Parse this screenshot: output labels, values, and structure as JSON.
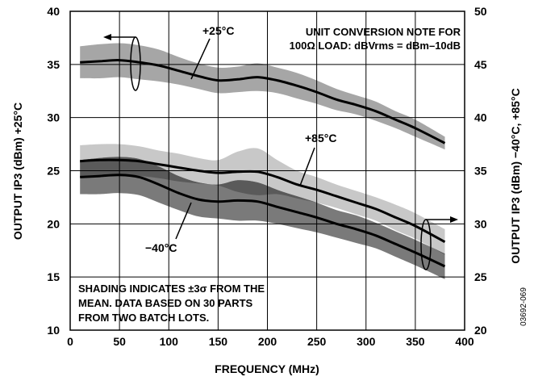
{
  "chart_data": {
    "type": "line",
    "title": "",
    "xlabel": "FREQUENCY (MHz)",
    "ylabel_left": "OUTPUT IP3 (dBm) +25°C",
    "ylabel_right": "OUTPUT IP3 (dBm) −40°C, +85°C",
    "xlim": [
      0,
      400
    ],
    "ylim_left": [
      10,
      40
    ],
    "ylim_right": [
      20,
      50
    ],
    "x_ticks": [
      "0",
      "50",
      "100",
      "150",
      "200",
      "250",
      "300",
      "350",
      "400"
    ],
    "y_ticks_left": [
      "10",
      "15",
      "20",
      "25",
      "30",
      "35",
      "40"
    ],
    "y_ticks_right": [
      "20",
      "25",
      "30",
      "35",
      "40",
      "45",
      "50"
    ],
    "grid": true,
    "colors": {
      "band_25": "#a6a6a6",
      "band_85": "#c8c8c8",
      "band_m40": "#7a7a7a",
      "overlap": "#5a5a5a",
      "line": "#000000",
      "grid": "#000000"
    },
    "series": [
      {
        "name": "+25°C",
        "axis": "left",
        "x": [
          10,
          30,
          50,
          70,
          90,
          110,
          130,
          150,
          170,
          190,
          210,
          230,
          250,
          270,
          290,
          310,
          330,
          350,
          380
        ],
        "y": [
          35.2,
          35.3,
          35.4,
          35.2,
          34.9,
          34.4,
          33.9,
          33.5,
          33.6,
          33.8,
          33.5,
          33.0,
          32.4,
          31.7,
          31.2,
          30.6,
          29.8,
          29.0,
          27.6
        ],
        "band": [
          1.5,
          1.6,
          1.6,
          1.6,
          1.5,
          1.3,
          1.2,
          1.2,
          1.2,
          1.3,
          1.2,
          1.2,
          1.1,
          1.0,
          0.9,
          0.9,
          0.8,
          0.8,
          0.6
        ]
      },
      {
        "name": "+85°C",
        "axis": "right",
        "x": [
          10,
          30,
          50,
          70,
          90,
          110,
          130,
          150,
          170,
          190,
          210,
          230,
          250,
          270,
          290,
          310,
          330,
          350,
          380
        ],
        "y": [
          35.9,
          36.0,
          36.0,
          35.9,
          35.6,
          35.3,
          35.0,
          34.8,
          34.9,
          34.9,
          34.4,
          33.7,
          33.2,
          32.6,
          32.0,
          31.4,
          30.6,
          29.8,
          28.3
        ],
        "band": [
          1.5,
          1.5,
          1.5,
          1.4,
          1.3,
          1.3,
          1.2,
          1.2,
          1.9,
          2.2,
          1.6,
          1.3,
          1.2,
          1.1,
          1.1,
          1.1,
          1.2,
          1.2,
          1.2
        ]
      },
      {
        "name": "−40°C",
        "axis": "right",
        "x": [
          10,
          30,
          50,
          70,
          90,
          110,
          130,
          150,
          170,
          190,
          210,
          230,
          250,
          270,
          290,
          310,
          330,
          350,
          380
        ],
        "y": [
          34.4,
          34.5,
          34.6,
          34.4,
          33.7,
          32.9,
          32.3,
          32.1,
          32.2,
          32.1,
          31.6,
          31.1,
          30.6,
          30.0,
          29.5,
          28.9,
          28.1,
          27.3,
          26.0
        ],
        "band": [
          1.6,
          1.7,
          1.7,
          1.7,
          1.7,
          1.6,
          1.6,
          1.6,
          1.9,
          1.8,
          1.6,
          1.5,
          1.4,
          1.3,
          1.3,
          1.2,
          1.2,
          1.2,
          1.2
        ]
      }
    ],
    "annotations": {
      "label_25": "+25°C",
      "label_85": "+85°C",
      "label_m40": "−40°C",
      "conversion_note_line1": "UNIT CONVERSION NOTE FOR",
      "conversion_note_line2": "100Ω LOAD: dBVrms = dBm–10dB",
      "shading_note_line1": "SHADING INDICATES ±3σ FROM THE",
      "shading_note_line2": "MEAN. DATA BASED ON 30 PARTS",
      "shading_note_line3": "FROM TWO BATCH LOTS.",
      "figure_code": "03692-069"
    }
  }
}
